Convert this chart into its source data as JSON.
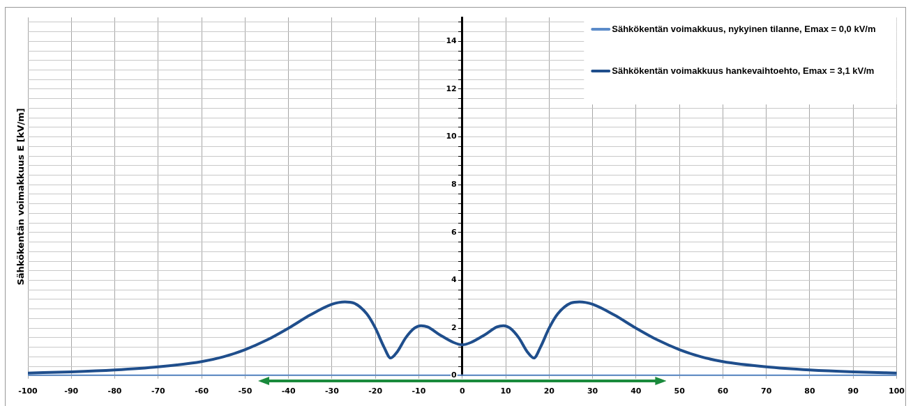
{
  "chart_data": {
    "type": "line",
    "ylabel": "Sähkökentän voimakkuus E [kV/m]",
    "xlim": [
      -100,
      100
    ],
    "xticks": [
      -100,
      -90,
      -80,
      -70,
      -60,
      -50,
      -40,
      -30,
      -20,
      -10,
      0,
      10,
      20,
      30,
      40,
      50,
      60,
      70,
      80,
      90,
      100
    ],
    "ylim": [
      0,
      15
    ],
    "yticks": [
      0,
      {
        "value": 0.4,
        "label": null
      },
      {
        "value": 0.8,
        "label": null
      },
      {
        "value": 1.2,
        "label": null
      },
      {
        "value": 1.6,
        "label": null
      },
      2,
      {
        "value": 2.4,
        "label": null
      },
      {
        "value": 2.8,
        "label": null
      },
      {
        "value": 3.2,
        "label": null
      },
      {
        "value": 3.6,
        "label": null
      },
      4,
      {
        "value": 4.4,
        "label": null
      },
      {
        "value": 4.8,
        "label": null
      },
      {
        "value": 5.2,
        "label": null
      },
      {
        "value": 5.6,
        "label": null
      },
      6,
      {
        "value": 6.4,
        "label": null
      },
      {
        "value": 6.8,
        "label": null
      },
      {
        "value": 7.2,
        "label": null
      },
      {
        "value": 7.6,
        "label": null
      },
      8,
      {
        "value": 8.4,
        "label": null
      },
      {
        "value": 8.8,
        "label": null
      },
      {
        "value": 9.2,
        "label": null
      },
      {
        "value": 9.6,
        "label": null
      },
      10,
      {
        "value": 10.4,
        "label": null
      },
      {
        "value": 10.8,
        "label": null
      },
      {
        "value": 11.2,
        "label": null
      },
      {
        "value": 11.6,
        "label": null
      },
      12,
      {
        "value": 12.4,
        "label": null
      },
      {
        "value": 12.8,
        "label": null
      },
      {
        "value": 13.2,
        "label": null
      },
      {
        "value": 13.6,
        "label": null
      },
      14,
      {
        "value": 14.4,
        "label": null
      },
      {
        "value": 14.8,
        "label": null
      }
    ],
    "grid": true,
    "legend": "top right",
    "marker": "none",
    "line_style": "solid",
    "series": [
      {
        "name": "Sähkökentän voimakkuus, nykyinen tilanne, Emax = 0,0 kV/m",
        "color": "#5b8bc9",
        "x": [
          -100,
          100
        ],
        "values": [
          0,
          0
        ]
      },
      {
        "name": "Sähkökentän voimakkuus hankevaihtoehto, Emax = 3,1 kV/m",
        "color": "#1f4e8c",
        "x": [
          -100,
          -90,
          -80,
          -70,
          -60,
          -55,
          -50,
          -45,
          -40,
          -35,
          -30,
          -27,
          -25,
          -22,
          -20,
          -18,
          -16.5,
          -15,
          -13,
          -11,
          -9.5,
          -8,
          -5,
          -2,
          0,
          2,
          5,
          8,
          9.5,
          11,
          13,
          15,
          16.5,
          18,
          20,
          22,
          25,
          27,
          30,
          35,
          40,
          45,
          50,
          55,
          60,
          70,
          80,
          90,
          100
        ],
        "values": [
          0.12,
          0.17,
          0.25,
          0.38,
          0.6,
          0.8,
          1.1,
          1.5,
          2.0,
          2.55,
          3.0,
          3.1,
          3.05,
          2.6,
          2.0,
          1.2,
          0.75,
          1.0,
          1.6,
          2.0,
          2.1,
          2.05,
          1.7,
          1.4,
          1.3,
          1.4,
          1.7,
          2.05,
          2.1,
          2.0,
          1.6,
          1.0,
          0.75,
          1.2,
          2.0,
          2.6,
          3.05,
          3.1,
          3.0,
          2.55,
          2.0,
          1.5,
          1.1,
          0.8,
          0.6,
          0.38,
          0.25,
          0.17,
          0.12
        ]
      }
    ]
  }
}
